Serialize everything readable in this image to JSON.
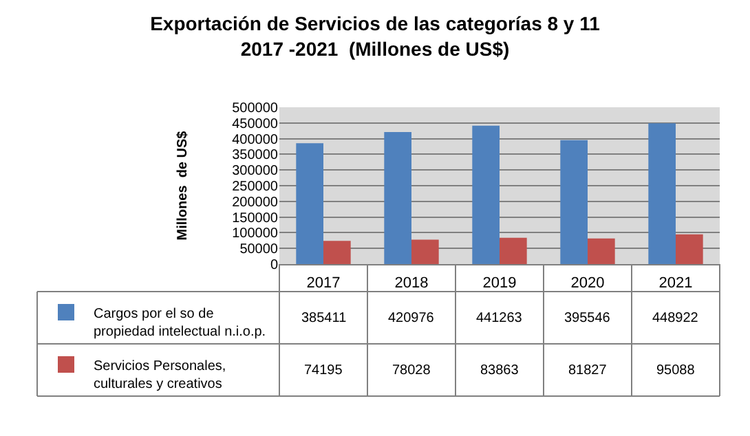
{
  "chart_data": {
    "type": "bar",
    "title": "Exportación de Servicios de las categorías 8 y 11\n2017 -2021  (Millones de US$)",
    "ylabel": "Millones  de US$",
    "categories": [
      "2017",
      "2018",
      "2019",
      "2020",
      "2021"
    ],
    "series": [
      {
        "name": "Cargos por el so de propiedad intelectual n.i.o.p.",
        "color": "#4f81bd",
        "values": [
          385411,
          420976,
          441263,
          395546,
          448922
        ]
      },
      {
        "name": "Servicios Personales, culturales y creativos",
        "color": "#c0504d",
        "values": [
          74195,
          78028,
          83863,
          81827,
          95088
        ]
      }
    ],
    "ylim": [
      0,
      500000
    ],
    "yticks": [
      0,
      50000,
      100000,
      150000,
      200000,
      250000,
      300000,
      350000,
      400000,
      450000,
      500000
    ],
    "grid": "y",
    "legend": "bottom left",
    "data_labels": true
  }
}
